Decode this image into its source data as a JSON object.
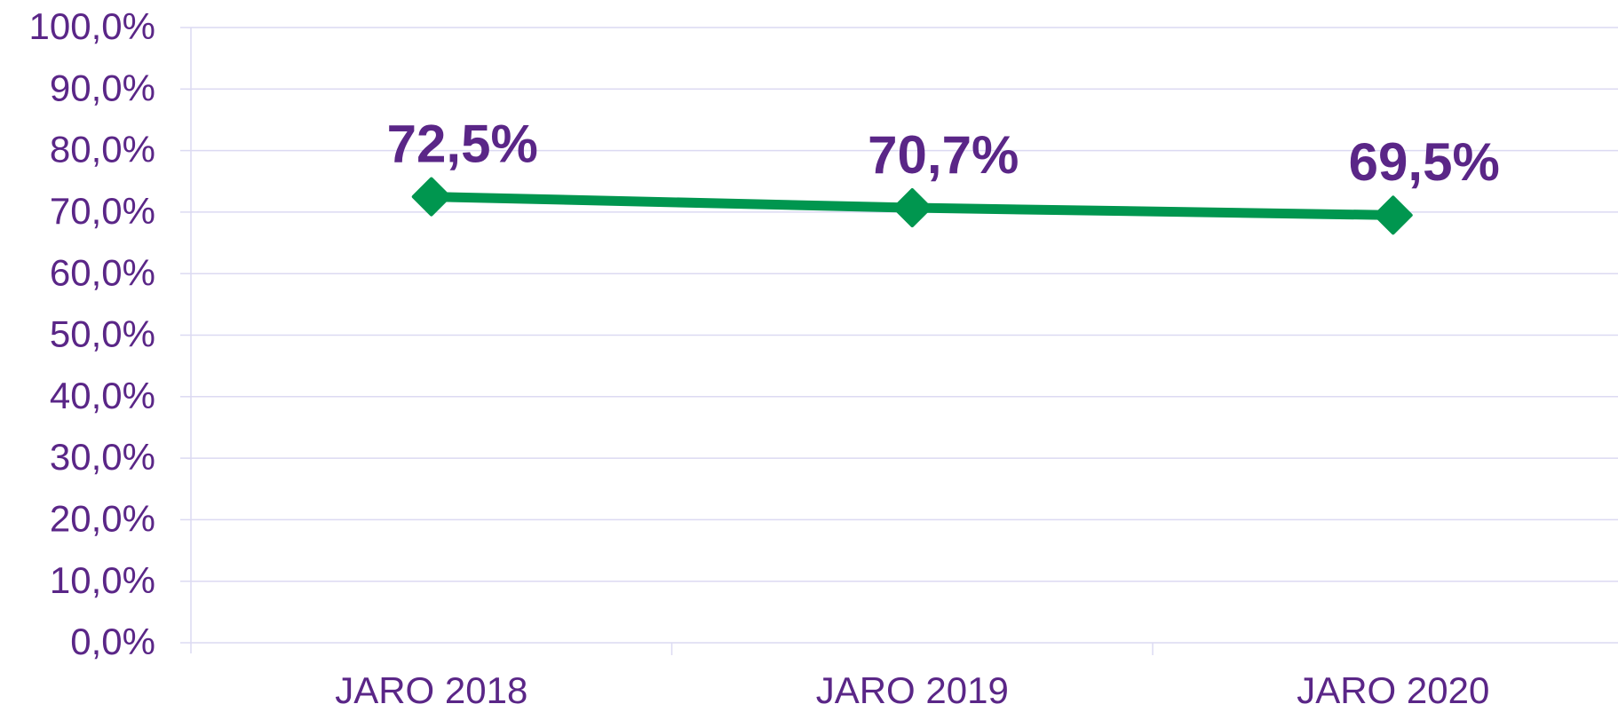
{
  "chart_data": {
    "type": "line",
    "categories": [
      "JARO 2018",
      "JARO 2019",
      "JARO 2020"
    ],
    "values": [
      72.5,
      70.7,
      69.5
    ],
    "value_labels": [
      "72,5%",
      "70,7%",
      "69,5%"
    ],
    "color": "#00964f",
    "ylim": [
      0,
      100
    ],
    "yticks": [
      {
        "value": 0,
        "label": "0,0%"
      },
      {
        "value": 10,
        "label": "10,0%"
      },
      {
        "value": 20,
        "label": "20,0%"
      },
      {
        "value": 30,
        "label": "30,0%"
      },
      {
        "value": 40,
        "label": "40,0%"
      },
      {
        "value": 50,
        "label": "50,0%"
      },
      {
        "value": 60,
        "label": "60,0%"
      },
      {
        "value": 70,
        "label": "70,0%"
      },
      {
        "value": 80,
        "label": "80,0%"
      },
      {
        "value": 90,
        "label": "90,0%"
      },
      {
        "value": 100,
        "label": "100,0%"
      }
    ],
    "grid": true
  }
}
